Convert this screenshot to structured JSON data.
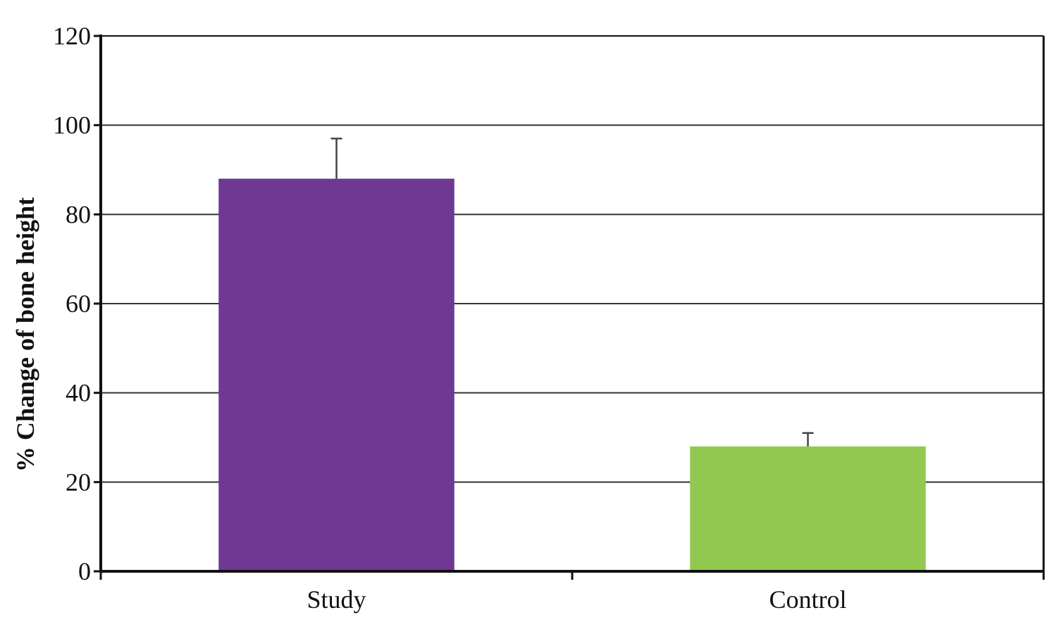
{
  "chart_data": {
    "type": "bar",
    "title": "",
    "xlabel": "",
    "ylabel": "% Change of bone height",
    "categories": [
      "Study",
      "Control"
    ],
    "values": [
      88,
      28
    ],
    "error_upper": [
      97,
      31
    ],
    "bar_colors": [
      "#6f3893",
      "#92c850"
    ],
    "ylim": [
      0,
      120
    ],
    "yticks": [
      0,
      20,
      40,
      60,
      80,
      100,
      120
    ],
    "ytick_labels": [
      "0",
      "20",
      "40",
      "60",
      "80",
      "100",
      "120"
    ],
    "grid": true,
    "grid_color": "#333333",
    "legend": "none"
  }
}
